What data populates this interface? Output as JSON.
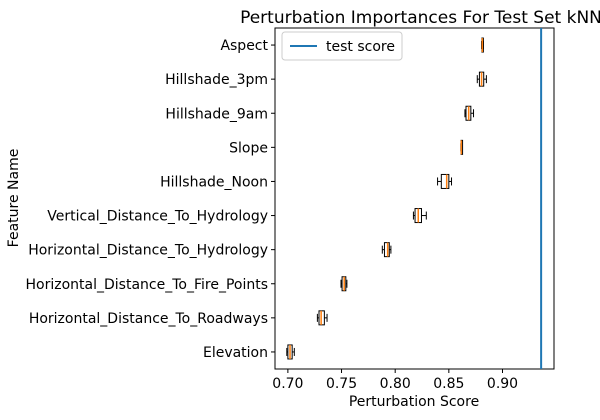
{
  "chart_data": {
    "type": "box",
    "title": "Perturbation Importances For Test Set kNN",
    "xlabel": "Perturbation Score",
    "ylabel": "Feature Name",
    "xlim": [
      0.688,
      0.948
    ],
    "x_ticks": [
      0.7,
      0.75,
      0.8,
      0.85,
      0.9
    ],
    "x_tick_labels": [
      "0.70",
      "0.75",
      "0.80",
      "0.85",
      "0.90"
    ],
    "grid": false,
    "legend": {
      "position": "top-left",
      "entries": [
        {
          "label": "test score",
          "color": "#1f77b4",
          "type": "line"
        }
      ]
    },
    "reference_line": {
      "label": "test score",
      "value": 0.936,
      "color": "#1f77b4"
    },
    "colors": {
      "box_edge": "#000000",
      "median": "#ff7f0e",
      "box_fill": "#ffffff",
      "reference": "#1f77b4"
    },
    "categories": [
      "Aspect",
      "Hillshade_3pm",
      "Hillshade_9am",
      "Slope",
      "Hillshade_Noon",
      "Vertical_Distance_To_Hydrology",
      "Horizontal_Distance_To_Hydrology",
      "Horizontal_Distance_To_Fire_Points",
      "Horizontal_Distance_To_Roadways",
      "Elevation"
    ],
    "boxes": [
      {
        "label": "Aspect",
        "whislo": 0.8805,
        "q1": 0.8808,
        "median": 0.8812,
        "q3": 0.8818,
        "whishi": 0.8822
      },
      {
        "label": "Hillshade_3pm",
        "whislo": 0.8765,
        "q1": 0.8785,
        "median": 0.8805,
        "q3": 0.8825,
        "whishi": 0.885
      },
      {
        "label": "Hillshade_9am",
        "whislo": 0.865,
        "q1": 0.866,
        "median": 0.8685,
        "q3": 0.8705,
        "whishi": 0.873
      },
      {
        "label": "Slope",
        "whislo": 0.8612,
        "q1": 0.8614,
        "median": 0.8616,
        "q3": 0.8618,
        "whishi": 0.862
      },
      {
        "label": "Hillshade_Noon",
        "whislo": 0.8395,
        "q1": 0.843,
        "median": 0.848,
        "q3": 0.85,
        "whishi": 0.8525
      },
      {
        "label": "Vertical_Distance_To_Hydrology",
        "whislo": 0.817,
        "q1": 0.8185,
        "median": 0.8215,
        "q3": 0.8245,
        "whishi": 0.829
      },
      {
        "label": "Horizontal_Distance_To_Hydrology",
        "whislo": 0.788,
        "q1": 0.79,
        "median": 0.793,
        "q3": 0.7945,
        "whishi": 0.796
      },
      {
        "label": "Horizontal_Distance_To_Fire_Points",
        "whislo": 0.7495,
        "q1": 0.7505,
        "median": 0.7525,
        "q3": 0.754,
        "whishi": 0.755
      },
      {
        "label": "Horizontal_Distance_To_Roadways",
        "whislo": 0.7275,
        "q1": 0.729,
        "median": 0.731,
        "q3": 0.734,
        "whishi": 0.7365
      },
      {
        "label": "Elevation",
        "whislo": 0.699,
        "q1": 0.7,
        "median": 0.702,
        "q3": 0.704,
        "whishi": 0.706
      }
    ]
  }
}
